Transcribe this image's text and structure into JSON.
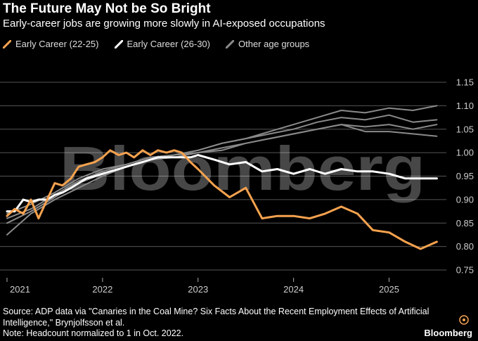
{
  "header": {
    "title": "The Future May Not be So Bright",
    "subtitle": "Early-career jobs are growing more slowly in AI-exposed occupations"
  },
  "legend": [
    {
      "label": "Early Career (22-25)",
      "color": "#f6a24e"
    },
    {
      "label": "Early Career (26-30)",
      "color": "#ffffff"
    },
    {
      "label": "Other age groups",
      "color": "#8a8a8a"
    }
  ],
  "watermark": "Bloomberg",
  "footer": {
    "source": "Source: ADP data via \"Canaries in the Coal Mine? Six Facts About the Recent Employment Effects of Artificial Intelligence,\" Brynjolfsson et al.",
    "note": "Note: Headcount normalized to 1 in Oct. 2022."
  },
  "brand": "Bloomberg",
  "chart_data": {
    "type": "line",
    "title": "The Future May Not be So Bright",
    "subtitle": "Early-career jobs are growing more slowly in AI-exposed occupations",
    "x_unit": "year",
    "xlim": [
      2021.0,
      2025.6
    ],
    "ylim": [
      0.75,
      1.15
    ],
    "x_ticks": [
      2021,
      2022,
      2023,
      2024,
      2025
    ],
    "x_tick_labels": [
      "2021",
      "2022",
      "2023",
      "2024",
      "2025"
    ],
    "y_ticks": [
      0.75,
      0.8,
      0.85,
      0.9,
      0.95,
      1.0,
      1.05,
      1.1,
      1.15
    ],
    "y_tick_labels": [
      "0.75",
      "0.80",
      "0.85",
      "0.90",
      "0.95",
      "1.00",
      "1.05",
      "1.10",
      "1.15"
    ],
    "grid": "horizontal",
    "legend_position": "top-left",
    "series": [
      {
        "name": "Other age groups",
        "color": "#8a8a8a",
        "x": [
          2021.0,
          2021.25,
          2021.5,
          2021.75,
          2022.0,
          2022.25,
          2022.5,
          2022.75,
          2023.0,
          2023.25,
          2023.5,
          2023.75,
          2024.0,
          2024.25,
          2024.5,
          2024.75,
          2025.0,
          2025.25,
          2025.5
        ],
        "y": [
          0.825,
          0.87,
          0.9,
          0.925,
          0.95,
          0.97,
          0.985,
          0.995,
          1.005,
          1.02,
          1.03,
          1.045,
          1.06,
          1.075,
          1.09,
          1.085,
          1.095,
          1.09,
          1.1
        ]
      },
      {
        "name": "Other age groups",
        "color": "#8a8a8a",
        "x": [
          2021.0,
          2021.25,
          2021.5,
          2021.75,
          2022.0,
          2022.25,
          2022.5,
          2022.75,
          2023.0,
          2023.25,
          2023.5,
          2023.75,
          2024.0,
          2024.25,
          2024.5,
          2024.75,
          2025.0,
          2025.25,
          2025.5
        ],
        "y": [
          0.86,
          0.88,
          0.91,
          0.94,
          0.96,
          0.975,
          0.99,
          0.995,
          1.005,
          1.02,
          1.03,
          1.04,
          1.05,
          1.065,
          1.075,
          1.07,
          1.08,
          1.065,
          1.07
        ]
      },
      {
        "name": "Other age groups",
        "color": "#8a8a8a",
        "x": [
          2021.0,
          2021.25,
          2021.5,
          2021.75,
          2022.0,
          2022.25,
          2022.5,
          2022.75,
          2023.0,
          2023.25,
          2023.5,
          2023.75,
          2024.0,
          2024.25,
          2024.5,
          2024.75,
          2025.0,
          2025.25,
          2025.5
        ],
        "y": [
          0.85,
          0.875,
          0.905,
          0.935,
          0.955,
          0.97,
          0.985,
          0.99,
          1.0,
          1.01,
          1.02,
          1.03,
          1.04,
          1.05,
          1.06,
          1.055,
          1.06,
          1.05,
          1.06
        ]
      },
      {
        "name": "Other age groups",
        "color": "#8a8a8a",
        "x": [
          2021.0,
          2021.25,
          2021.5,
          2021.75,
          2022.0,
          2022.25,
          2022.5,
          2022.75,
          2023.0,
          2023.25,
          2023.5,
          2023.75,
          2024.0,
          2024.25,
          2024.5,
          2024.75,
          2025.0,
          2025.25,
          2025.5
        ],
        "y": [
          0.87,
          0.89,
          0.915,
          0.945,
          0.965,
          0.975,
          0.99,
          0.995,
          1.0,
          1.005,
          1.02,
          1.03,
          1.04,
          1.05,
          1.06,
          1.045,
          1.045,
          1.04,
          1.035
        ]
      },
      {
        "name": "Early Career (26-30)",
        "color": "#ffffff",
        "x": [
          2021.0,
          2021.08,
          2021.17,
          2021.25,
          2021.33,
          2021.42,
          2021.5,
          2021.58,
          2021.67,
          2021.75,
          2021.83,
          2021.92,
          2022.0,
          2022.08,
          2022.17,
          2022.25,
          2022.33,
          2022.42,
          2022.5,
          2022.58,
          2022.67,
          2022.75,
          2022.83,
          2022.92,
          2023.0,
          2023.17,
          2023.33,
          2023.5,
          2023.67,
          2023.83,
          2024.0,
          2024.17,
          2024.33,
          2024.5,
          2024.67,
          2024.83,
          2025.0,
          2025.17,
          2025.33,
          2025.5
        ],
        "y": [
          0.875,
          0.875,
          0.9,
          0.895,
          0.9,
          0.9,
          0.91,
          0.915,
          0.925,
          0.935,
          0.945,
          0.95,
          0.955,
          0.96,
          0.965,
          0.97,
          0.975,
          0.98,
          0.985,
          0.99,
          0.99,
          0.99,
          0.99,
          0.99,
          0.995,
          0.985,
          0.975,
          0.98,
          0.96,
          0.965,
          0.955,
          0.965,
          0.955,
          0.965,
          0.96,
          0.96,
          0.955,
          0.945,
          0.945,
          0.945
        ]
      },
      {
        "name": "Early Career (22-25)",
        "color": "#f6a24e",
        "x": [
          2021.0,
          2021.08,
          2021.17,
          2021.25,
          2021.33,
          2021.42,
          2021.5,
          2021.58,
          2021.67,
          2021.75,
          2021.83,
          2021.92,
          2022.0,
          2022.08,
          2022.17,
          2022.25,
          2022.33,
          2022.42,
          2022.5,
          2022.58,
          2022.67,
          2022.75,
          2022.83,
          2022.92,
          2023.0,
          2023.17,
          2023.33,
          2023.5,
          2023.67,
          2023.83,
          2024.0,
          2024.17,
          2024.33,
          2024.5,
          2024.67,
          2024.83,
          2025.0,
          2025.17,
          2025.33,
          2025.5
        ],
        "y": [
          0.865,
          0.88,
          0.87,
          0.9,
          0.86,
          0.9,
          0.935,
          0.93,
          0.945,
          0.97,
          0.975,
          0.98,
          0.99,
          1.005,
          0.995,
          1.0,
          0.99,
          1.005,
          0.995,
          1.005,
          1.0,
          1.005,
          1.0,
          0.98,
          0.965,
          0.93,
          0.905,
          0.925,
          0.86,
          0.865,
          0.865,
          0.86,
          0.87,
          0.885,
          0.87,
          0.835,
          0.83,
          0.81,
          0.795,
          0.81
        ]
      }
    ]
  }
}
